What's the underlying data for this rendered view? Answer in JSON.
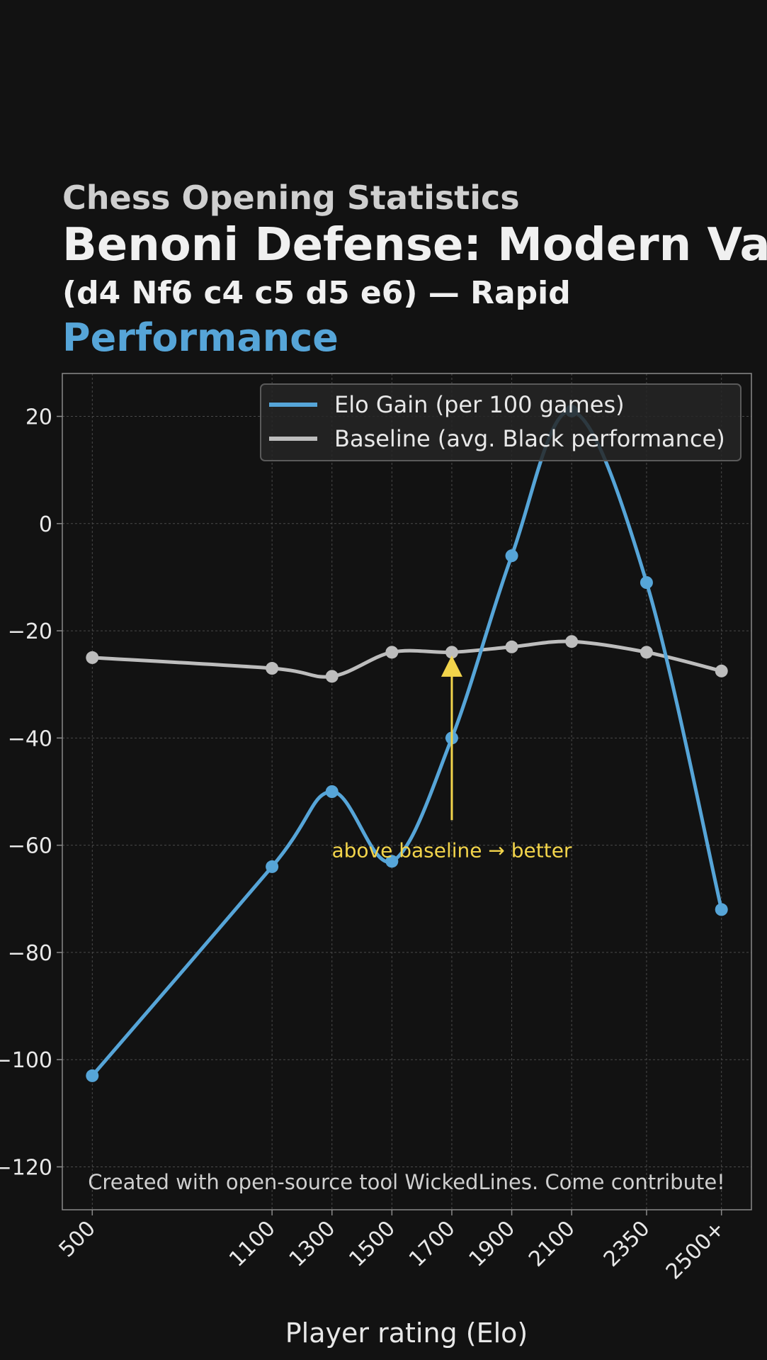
{
  "header": {
    "kicker": "Chess Opening Statistics",
    "title": "Benoni Defense: Modern Variation",
    "subtitle": "(d4 Nf6 c4 c5 d5 e6) — Rapid",
    "accent": "Performance"
  },
  "colors": {
    "background": "#121212",
    "elo_series": "#56a5d8",
    "baseline_series": "#bdbdbd",
    "annotation": "#f2d44b",
    "grid": "#4a4a4a",
    "frame": "#8a8a8a",
    "text": "#e8e8e8"
  },
  "chart_data": {
    "type": "line",
    "xlabel": "Player rating (Elo)",
    "ylabel": "",
    "categories": [
      "500",
      "1100",
      "1300",
      "1500",
      "1700",
      "1900",
      "2100",
      "2350",
      "2500+"
    ],
    "x": [
      500,
      1100,
      1300,
      1500,
      1700,
      1900,
      2100,
      2350,
      2600
    ],
    "yticks": [
      20,
      0,
      -20,
      -40,
      -60,
      -80,
      -100,
      -120
    ],
    "ylim": [
      -128,
      28
    ],
    "xlim": [
      400,
      2700
    ],
    "grid": true,
    "legend_position": "top-right",
    "series": [
      {
        "name": "Elo Gain (per 100 games)",
        "values": [
          -103,
          -64,
          -50,
          -63,
          -40,
          -6,
          21,
          -11,
          -72
        ]
      },
      {
        "name": "Baseline (avg. Black performance)",
        "values": [
          -25,
          -27,
          -28.5,
          -24,
          -24,
          -23,
          -22,
          -24,
          -27.5
        ]
      }
    ],
    "annotation": {
      "text": "above baseline → better",
      "x": 1700,
      "y_from": -54,
      "y_to": -25
    },
    "watermark": "Created with open-source tool WickedLines. Come contribute!"
  }
}
